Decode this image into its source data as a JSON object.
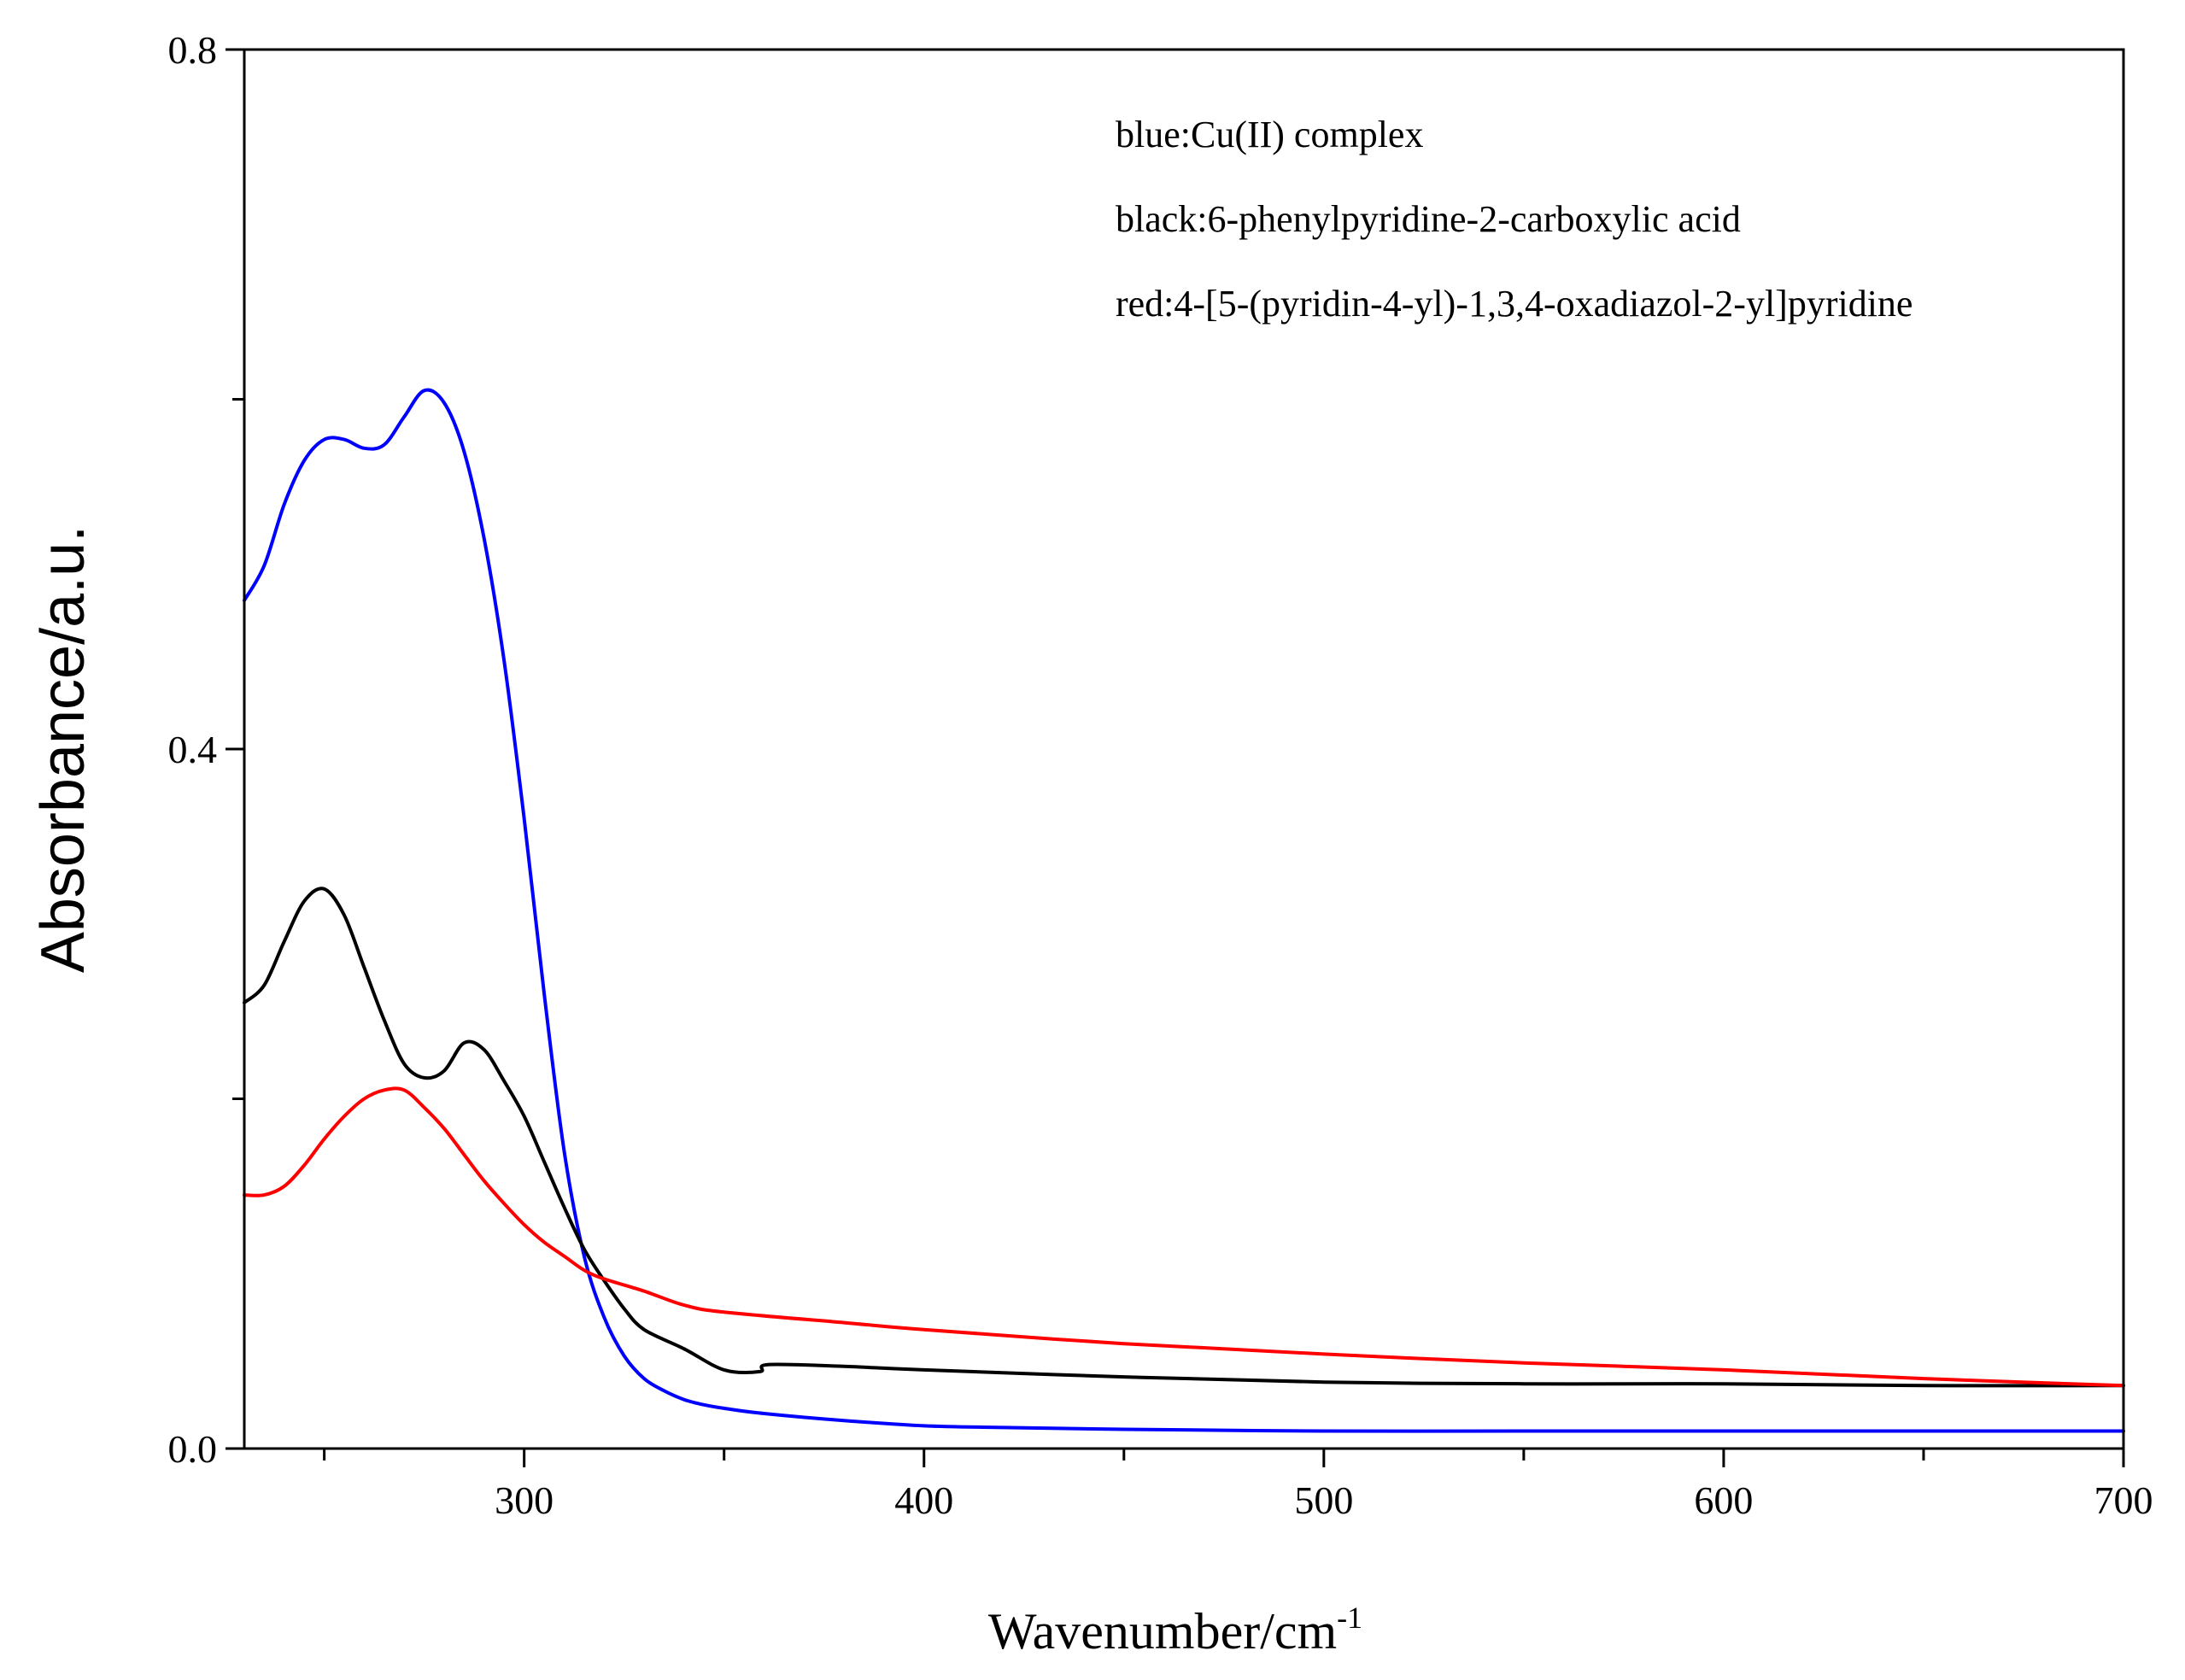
{
  "chart_data": {
    "type": "line",
    "title": "",
    "xlabel": "Wavenumber/cm",
    "xlabel_superscript": "-1",
    "ylabel": "Absorbance/a.u.",
    "xlim": [
      230,
      700
    ],
    "ylim": [
      0.0,
      0.8
    ],
    "x_ticks": [
      300,
      400,
      500,
      600,
      700
    ],
    "x_tick_labels": [
      "300",
      "400",
      "500",
      "600",
      "700"
    ],
    "y_ticks": [
      0.0,
      0.4,
      0.8
    ],
    "y_tick_labels": [
      "0.0",
      "0.4",
      "0.8"
    ],
    "grid": false,
    "legend_position": "top-right",
    "annotations": [
      "blue:Cu(II) complex",
      "black:6-phenylpyridine-2-carboxylic acid",
      "red:4-[5-(pyridin-4-yl)-1,3,4-oxadiazol-2-yl]pyridine"
    ],
    "series": [
      {
        "name": "Cu(II) complex",
        "color": "#0000ff",
        "x": [
          230,
          235,
          240,
          245,
          250,
          255,
          260,
          265,
          270,
          275,
          280,
          285,
          290,
          295,
          300,
          305,
          310,
          315,
          320,
          325,
          330,
          335,
          340,
          345,
          350,
          360,
          380,
          400,
          420,
          450,
          500,
          550,
          600,
          650,
          700
        ],
        "y": [
          0.485,
          0.505,
          0.54,
          0.565,
          0.577,
          0.577,
          0.572,
          0.574,
          0.59,
          0.605,
          0.598,
          0.57,
          0.52,
          0.45,
          0.36,
          0.26,
          0.17,
          0.11,
          0.075,
          0.053,
          0.04,
          0.033,
          0.028,
          0.025,
          0.023,
          0.02,
          0.016,
          0.013,
          0.012,
          0.011,
          0.01,
          0.01,
          0.01,
          0.01,
          0.01
        ]
      },
      {
        "name": "6-phenylpyridine-2-carboxylic acid",
        "color": "#000000",
        "x": [
          230,
          235,
          240,
          245,
          250,
          255,
          260,
          265,
          270,
          275,
          280,
          285,
          290,
          295,
          300,
          305,
          310,
          315,
          320,
          325,
          330,
          340,
          350,
          359,
          361,
          380,
          400,
          450,
          500,
          550,
          600,
          650,
          700
        ],
        "y": [
          0.255,
          0.265,
          0.29,
          0.313,
          0.32,
          0.305,
          0.275,
          0.245,
          0.22,
          0.212,
          0.216,
          0.232,
          0.228,
          0.21,
          0.19,
          0.164,
          0.138,
          0.114,
          0.096,
          0.08,
          0.068,
          0.057,
          0.045,
          0.044,
          0.048,
          0.047,
          0.045,
          0.041,
          0.038,
          0.037,
          0.037,
          0.036,
          0.036
        ]
      },
      {
        "name": "4-[5-(pyridin-4-yl)-1,3,4-oxadiazol-2-yl]pyridine",
        "color": "#ff0000",
        "x": [
          230,
          235,
          240,
          245,
          250,
          255,
          260,
          265,
          270,
          275,
          280,
          285,
          290,
          295,
          300,
          305,
          310,
          315,
          320,
          330,
          340,
          350,
          380,
          400,
          450,
          500,
          550,
          600,
          650,
          700
        ],
        "y": [
          0.145,
          0.145,
          0.15,
          0.162,
          0.177,
          0.19,
          0.2,
          0.205,
          0.205,
          0.195,
          0.183,
          0.168,
          0.153,
          0.14,
          0.128,
          0.118,
          0.11,
          0.102,
          0.097,
          0.09,
          0.082,
          0.078,
          0.072,
          0.068,
          0.06,
          0.054,
          0.049,
          0.045,
          0.04,
          0.036
        ]
      }
    ]
  }
}
